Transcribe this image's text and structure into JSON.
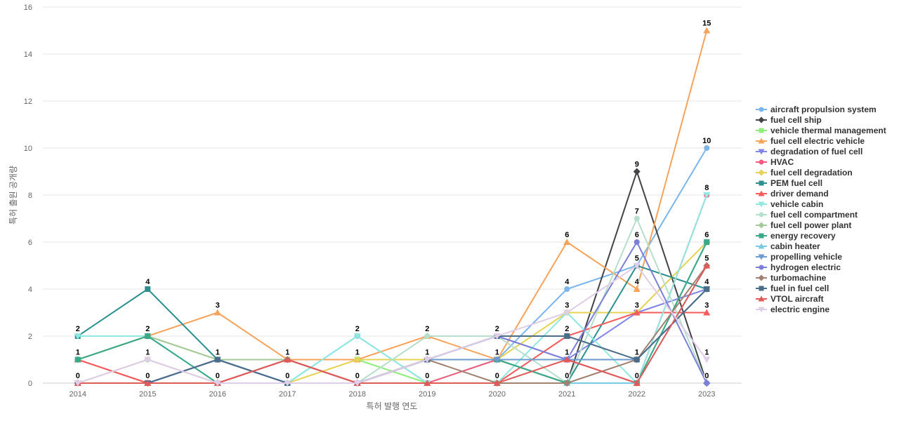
{
  "chart_data": {
    "type": "line",
    "title": "",
    "xlabel": "특허 발행 연도",
    "ylabel": "특허 출원 공개량",
    "ylim": [
      0,
      16
    ],
    "y_ticks": [
      0,
      2,
      4,
      6,
      8,
      10,
      12,
      14,
      16
    ],
    "grid": true,
    "legend_position": "right",
    "x": [
      "2014",
      "2015",
      "2016",
      "2017",
      "2018",
      "2019",
      "2020",
      "2021",
      "2022",
      "2023"
    ],
    "series": [
      {
        "name": "aircraft propulsion system",
        "color": "#7cb5ec",
        "marker": "circle",
        "values": [
          0,
          0,
          1,
          0,
          2,
          0,
          1,
          4,
          5,
          10
        ]
      },
      {
        "name": "fuel cell ship",
        "color": "#434348",
        "marker": "diamond",
        "values": [
          0,
          0,
          0,
          0,
          0,
          1,
          1,
          0,
          9,
          0
        ]
      },
      {
        "name": "vehicle thermal management",
        "color": "#90ed7d",
        "marker": "square",
        "values": [
          1,
          2,
          1,
          1,
          1,
          0,
          1,
          0,
          0,
          6
        ]
      },
      {
        "name": "fuel cell electric vehicle",
        "color": "#f7a35c",
        "marker": "triangle",
        "values": [
          1,
          2,
          3,
          1,
          1,
          2,
          1,
          6,
          4,
          15
        ]
      },
      {
        "name": "degradation of fuel cell",
        "color": "#8085e9",
        "marker": "triangle-down",
        "values": [
          0,
          0,
          1,
          0,
          0,
          1,
          2,
          1,
          3,
          4
        ]
      },
      {
        "name": "HVAC",
        "color": "#f15c80",
        "marker": "circle",
        "values": [
          1,
          0,
          1,
          1,
          0,
          0,
          1,
          1,
          0,
          8
        ]
      },
      {
        "name": "fuel cell degradation",
        "color": "#e4d354",
        "marker": "diamond",
        "values": [
          0,
          1,
          0,
          0,
          1,
          1,
          1,
          3,
          3,
          6
        ]
      },
      {
        "name": "PEM fuel cell",
        "color": "#2b908f",
        "marker": "square",
        "values": [
          2,
          4,
          1,
          0,
          0,
          1,
          1,
          0,
          5,
          4
        ]
      },
      {
        "name": "driver demand",
        "color": "#f45b5b",
        "marker": "triangle",
        "values": [
          1,
          0,
          0,
          1,
          0,
          0,
          0,
          2,
          3,
          3
        ]
      },
      {
        "name": "vehicle cabin",
        "color": "#91e8e1",
        "marker": "triangle-down",
        "values": [
          2,
          2,
          0,
          0,
          2,
          0,
          0,
          3,
          0,
          8
        ]
      },
      {
        "name": "fuel cell compartment",
        "color": "#b7dfcb",
        "marker": "circle",
        "values": [
          0,
          1,
          0,
          0,
          0,
          2,
          2,
          0,
          7,
          0
        ]
      },
      {
        "name": "fuel cell power plant",
        "color": "#a5c99a",
        "marker": "diamond",
        "values": [
          1,
          2,
          1,
          1,
          0,
          1,
          1,
          0,
          0,
          6
        ]
      },
      {
        "name": "energy recovery",
        "color": "#3aa98a",
        "marker": "square",
        "values": [
          1,
          2,
          0,
          0,
          0,
          1,
          1,
          0,
          0,
          6
        ]
      },
      {
        "name": "cabin heater",
        "color": "#78cbe0",
        "marker": "triangle",
        "values": [
          0,
          0,
          0,
          0,
          0,
          0,
          0,
          0,
          0,
          5
        ]
      },
      {
        "name": "propelling vehicle",
        "color": "#6c9bd2",
        "marker": "triangle-down",
        "values": [
          0,
          0,
          1,
          0,
          0,
          1,
          1,
          1,
          1,
          4
        ]
      },
      {
        "name": "hydrogen electric",
        "color": "#7b7fd9",
        "marker": "circle",
        "values": [
          0,
          0,
          1,
          0,
          0,
          1,
          2,
          1,
          6,
          0
        ]
      },
      {
        "name": "turbomachine",
        "color": "#a08070",
        "marker": "diamond",
        "values": [
          0,
          0,
          0,
          1,
          0,
          1,
          0,
          0,
          1,
          5
        ]
      },
      {
        "name": "fuel in fuel cell",
        "color": "#4a6e8a",
        "marker": "square",
        "values": [
          0,
          0,
          1,
          0,
          0,
          1,
          2,
          2,
          1,
          4
        ]
      },
      {
        "name": "VTOL aircraft",
        "color": "#e05a5a",
        "marker": "triangle",
        "values": [
          0,
          0,
          0,
          1,
          0,
          0,
          0,
          1,
          0,
          5
        ]
      },
      {
        "name": "electric engine",
        "color": "#e0cde8",
        "marker": "triangle-down",
        "values": [
          0,
          1,
          0,
          0,
          0,
          1,
          2,
          3,
          5,
          1
        ]
      }
    ],
    "data_labels": {
      "values": [
        [
          2,
          1,
          0
        ],
        [
          4,
          2,
          1,
          0
        ],
        [
          3,
          1,
          0
        ],
        [
          1,
          0
        ],
        [
          2,
          1,
          0
        ],
        [
          2,
          1,
          0
        ],
        [
          2,
          1,
          0
        ],
        [
          6,
          4,
          3,
          2,
          1,
          0
        ],
        [
          9,
          7,
          6,
          5,
          4,
          3,
          1,
          0
        ],
        [
          15,
          10,
          8,
          6,
          5,
          4,
          3,
          1,
          0
        ]
      ]
    }
  }
}
